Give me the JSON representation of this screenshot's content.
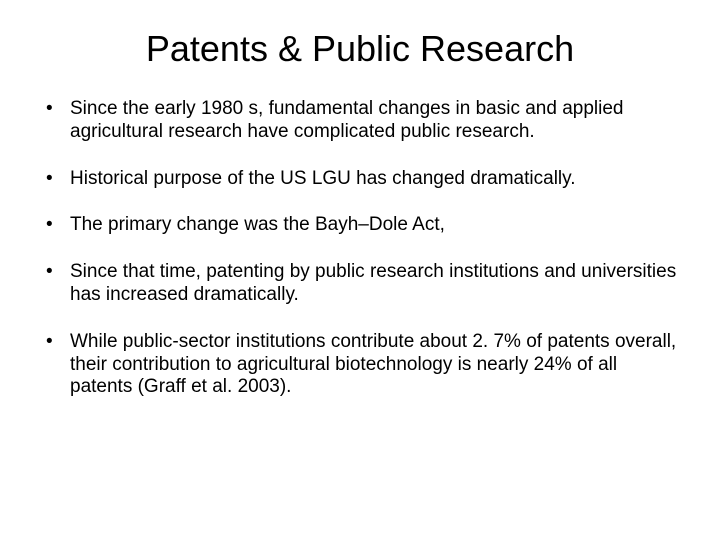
{
  "slide": {
    "title": "Patents & Public Research",
    "bullets": [
      "Since the early 1980 s, fundamental changes in basic and applied agricultural research have complicated public research.",
      "Historical purpose of the US LGU has changed dramatically.",
      "The primary change was the Bayh–Dole Act,",
      "Since that time, patenting by public research institutions and universities has increased dramatically.",
      "While public-sector institutions contribute about 2. 7% of patents overall, their contribution to agricultural biotechnology is nearly 24% of all patents (Graff et al. 2003)."
    ]
  },
  "styling": {
    "background_color": "#ffffff",
    "text_color": "#000000",
    "title_fontsize": 36,
    "body_fontsize": 19,
    "font_family": "Arial"
  }
}
